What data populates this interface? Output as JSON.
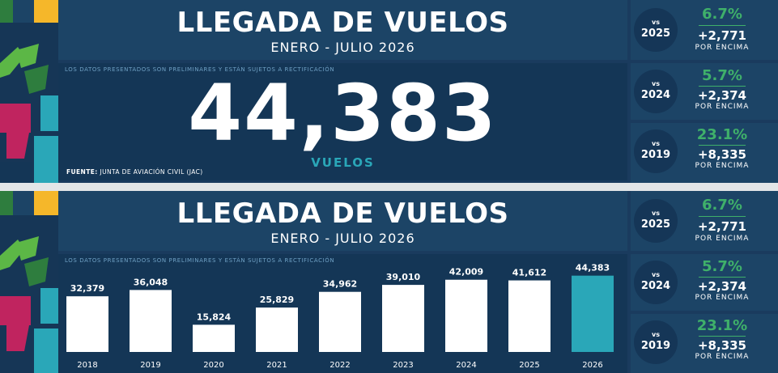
{
  "title": "LLEGADA DE VUELOS",
  "subtitle": "ENERO - JULIO 2026",
  "note": "LOS DATOS PRESENTADOS SON PRELIMINARES Y ESTÁN SUJETOS A RECTIFICACIÓN",
  "total": "44,383",
  "unit": "VUELOS",
  "source_label": "FUENTE:",
  "source_text": "JUNTA DE AVIACIÓN CIVIL (JAC)",
  "comparisons": [
    {
      "vs": "vs",
      "year": "2025",
      "pct": "6.7%",
      "diff": "+2,771",
      "dir": "POR ENCIMA"
    },
    {
      "vs": "vs",
      "year": "2024",
      "pct": "5.7%",
      "diff": "+2,374",
      "dir": "POR ENCIMA"
    },
    {
      "vs": "vs",
      "year": "2019",
      "pct": "23.1%",
      "diff": "+8,335",
      "dir": "POR ENCIMA"
    }
  ],
  "colors": {
    "background": "#1a3b5e",
    "bar": "#ffffff",
    "highlight_bar": "#2aa7b8",
    "positive": "#3fb06a"
  },
  "chart_data": {
    "type": "bar",
    "categories": [
      "2018",
      "2019",
      "2020",
      "2021",
      "2022",
      "2023",
      "2024",
      "2025",
      "2026"
    ],
    "values": [
      32379,
      36048,
      15824,
      25829,
      34962,
      39010,
      42009,
      41612,
      44383
    ],
    "value_labels": [
      "32,379",
      "36,048",
      "15,824",
      "25,829",
      "34,962",
      "39,010",
      "42,009",
      "41,612",
      "44,383"
    ],
    "highlight": "2026",
    "ylim": [
      0,
      48000
    ],
    "grid": false
  }
}
